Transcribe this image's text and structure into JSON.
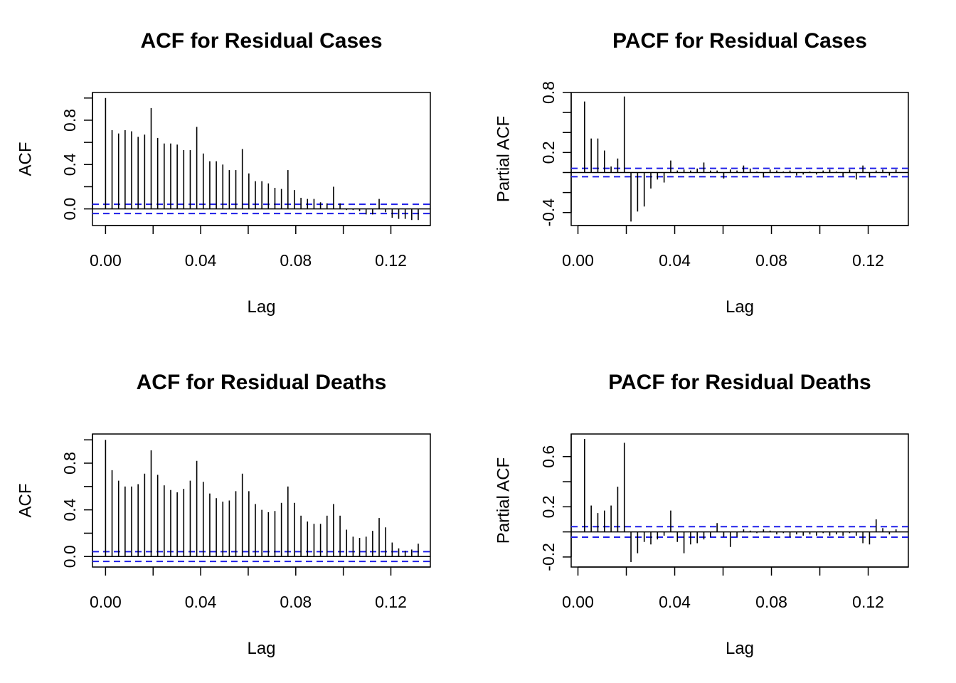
{
  "chart_data": [
    {
      "type": "bar",
      "title": "ACF for Residual Cases",
      "xlabel": "Lag",
      "ylabel": "ACF",
      "xlim": [
        -0.0055,
        0.1366
      ],
      "ylim": [
        -0.15,
        1.05
      ],
      "xticks": [
        0,
        0.04,
        0.08,
        0.12
      ],
      "xtick_labels": [
        "0.00",
        "0.04",
        "0.08",
        "0.12"
      ],
      "yticks": [
        0,
        0.2,
        0.4,
        0.6,
        0.8,
        1.0
      ],
      "ytick_labels": [
        "0.0",
        "",
        "0.4",
        "",
        "0.8",
        ""
      ],
      "ci": 0.042,
      "x": [
        0,
        0.00274,
        0.00548,
        0.00822,
        0.01096,
        0.0137,
        0.01644,
        0.01918,
        0.02192,
        0.02466,
        0.0274,
        0.03014,
        0.03288,
        0.03562,
        0.03836,
        0.0411,
        0.04384,
        0.04658,
        0.04932,
        0.05205,
        0.05479,
        0.05753,
        0.06027,
        0.06301,
        0.06575,
        0.06849,
        0.07123,
        0.07397,
        0.07671,
        0.07945,
        0.08219,
        0.08493,
        0.08767,
        0.09041,
        0.09315,
        0.09589,
        0.09863,
        0.10137,
        0.10411,
        0.10685,
        0.10959,
        0.11233,
        0.11507,
        0.11781,
        0.12055,
        0.12329,
        0.12603,
        0.12877,
        0.13151
      ],
      "values": [
        1.0,
        0.71,
        0.68,
        0.71,
        0.7,
        0.65,
        0.67,
        0.91,
        0.64,
        0.59,
        0.59,
        0.58,
        0.53,
        0.53,
        0.74,
        0.5,
        0.43,
        0.43,
        0.4,
        0.35,
        0.35,
        0.54,
        0.32,
        0.25,
        0.25,
        0.23,
        0.19,
        0.18,
        0.35,
        0.17,
        0.1,
        0.09,
        0.09,
        0.06,
        0.05,
        0.2,
        0.05,
        -0.01,
        -0.01,
        -0.02,
        -0.05,
        -0.05,
        0.09,
        -0.03,
        -0.08,
        -0.09,
        -0.09,
        -0.1,
        -0.1
      ]
    },
    {
      "type": "bar",
      "title": "PACF for Residual Cases",
      "xlabel": "Lag",
      "ylabel": "Partial ACF",
      "xlim": [
        -0.0028,
        0.1366
      ],
      "ylim": [
        -0.53,
        0.8
      ],
      "xticks": [
        0,
        0.04,
        0.08,
        0.12
      ],
      "xtick_labels": [
        "0.00",
        "0.04",
        "0.08",
        "0.12"
      ],
      "yticks": [
        -0.4,
        -0.2,
        0,
        0.2,
        0.4,
        0.6,
        0.8
      ],
      "ytick_labels": [
        "-0.4",
        "",
        "0.2",
        "",
        "0.8"
      ],
      "ytick_values": [
        -0.4,
        -0.2,
        0.2,
        0.5,
        0.8
      ],
      "ci": 0.042,
      "x": [
        0.00274,
        0.00548,
        0.00822,
        0.01096,
        0.0137,
        0.01644,
        0.01918,
        0.02192,
        0.02466,
        0.0274,
        0.03014,
        0.03288,
        0.03562,
        0.03836,
        0.0411,
        0.04384,
        0.04658,
        0.04932,
        0.05205,
        0.05479,
        0.05753,
        0.06027,
        0.06301,
        0.06575,
        0.06849,
        0.07123,
        0.07397,
        0.07671,
        0.07945,
        0.08219,
        0.08493,
        0.08767,
        0.09041,
        0.09315,
        0.09589,
        0.09863,
        0.10137,
        0.10411,
        0.10685,
        0.10959,
        0.11233,
        0.11507,
        0.11781,
        0.12055,
        0.12329,
        0.12603,
        0.12877,
        0.13151
      ],
      "values": [
        0.71,
        0.34,
        0.34,
        0.22,
        0.06,
        0.14,
        0.76,
        -0.49,
        -0.39,
        -0.34,
        -0.16,
        -0.07,
        -0.1,
        0.12,
        0.02,
        0.03,
        0.02,
        0.04,
        0.1,
        0.02,
        0.02,
        -0.06,
        0.03,
        0.02,
        0.07,
        0.04,
        0.01,
        -0.05,
        0.03,
        0.02,
        0.01,
        0.02,
        -0.03,
        -0.02,
        0.01,
        -0.02,
        0.02,
        0.03,
        0.01,
        -0.04,
        0.03,
        -0.07,
        0.07,
        -0.05,
        0.02,
        0.03,
        -0.03,
        0.03
      ]
    },
    {
      "type": "bar",
      "title": "ACF for Residual Deaths",
      "xlabel": "Lag",
      "ylabel": "ACF",
      "xlim": [
        -0.0055,
        0.1366
      ],
      "ylim": [
        -0.09,
        1.05
      ],
      "xticks": [
        0,
        0.04,
        0.08,
        0.12
      ],
      "xtick_labels": [
        "0.00",
        "0.04",
        "0.08",
        "0.12"
      ],
      "yticks": [
        0,
        0.2,
        0.4,
        0.6,
        0.8,
        1.0
      ],
      "ytick_labels": [
        "0.0",
        "",
        "0.4",
        "",
        "0.8",
        ""
      ],
      "ci": 0.042,
      "x": [
        0,
        0.00274,
        0.00548,
        0.00822,
        0.01096,
        0.0137,
        0.01644,
        0.01918,
        0.02192,
        0.02466,
        0.0274,
        0.03014,
        0.03288,
        0.03562,
        0.03836,
        0.0411,
        0.04384,
        0.04658,
        0.04932,
        0.05205,
        0.05479,
        0.05753,
        0.06027,
        0.06301,
        0.06575,
        0.06849,
        0.07123,
        0.07397,
        0.07671,
        0.07945,
        0.08219,
        0.08493,
        0.08767,
        0.09041,
        0.09315,
        0.09589,
        0.09863,
        0.10137,
        0.10411,
        0.10685,
        0.10959,
        0.11233,
        0.11507,
        0.11781,
        0.12055,
        0.12329,
        0.12603,
        0.12877,
        0.13151
      ],
      "values": [
        1.0,
        0.74,
        0.65,
        0.6,
        0.6,
        0.62,
        0.71,
        0.91,
        0.7,
        0.61,
        0.57,
        0.55,
        0.58,
        0.65,
        0.82,
        0.64,
        0.54,
        0.5,
        0.47,
        0.48,
        0.56,
        0.71,
        0.56,
        0.45,
        0.4,
        0.38,
        0.39,
        0.46,
        0.6,
        0.46,
        0.35,
        0.3,
        0.28,
        0.28,
        0.35,
        0.45,
        0.35,
        0.23,
        0.17,
        0.16,
        0.17,
        0.22,
        0.33,
        0.25,
        0.12,
        0.07,
        0.05,
        0.06,
        0.11
      ]
    },
    {
      "type": "bar",
      "title": "PACF for Residual Deaths",
      "xlabel": "Lag",
      "ylabel": "Partial ACF",
      "xlim": [
        -0.0028,
        0.1366
      ],
      "ylim": [
        -0.28,
        0.78
      ],
      "xticks": [
        0,
        0.04,
        0.08,
        0.12
      ],
      "xtick_labels": [
        "0.00",
        "0.04",
        "0.08",
        "0.12"
      ],
      "yticks": [
        -0.2,
        0,
        0.2,
        0.4,
        0.6
      ],
      "ytick_labels": [
        "-0.2",
        "",
        "0.2",
        "",
        "0.6"
      ],
      "ci": 0.042,
      "x": [
        0.00274,
        0.00548,
        0.00822,
        0.01096,
        0.0137,
        0.01644,
        0.01918,
        0.02192,
        0.02466,
        0.0274,
        0.03014,
        0.03288,
        0.03562,
        0.03836,
        0.0411,
        0.04384,
        0.04658,
        0.04932,
        0.05205,
        0.05479,
        0.05753,
        0.06027,
        0.06301,
        0.06575,
        0.06849,
        0.07123,
        0.07397,
        0.07671,
        0.07945,
        0.08219,
        0.08493,
        0.08767,
        0.09041,
        0.09315,
        0.09589,
        0.09863,
        0.10137,
        0.10411,
        0.10685,
        0.10959,
        0.11233,
        0.11507,
        0.11781,
        0.12055,
        0.12329,
        0.12603,
        0.12877,
        0.13151
      ],
      "values": [
        0.74,
        0.21,
        0.15,
        0.17,
        0.21,
        0.36,
        0.71,
        -0.24,
        -0.17,
        -0.08,
        -0.1,
        -0.06,
        -0.03,
        0.17,
        -0.08,
        -0.17,
        -0.1,
        -0.09,
        -0.06,
        -0.04,
        0.07,
        -0.04,
        -0.12,
        -0.04,
        0.02,
        0.01,
        -0.01,
        0.02,
        0.01,
        -0.02,
        -0.01,
        -0.04,
        -0.02,
        -0.03,
        -0.02,
        -0.03,
        -0.01,
        -0.03,
        -0.02,
        -0.03,
        -0.01,
        -0.03,
        -0.09,
        -0.1,
        0.1,
        0.03,
        -0.02,
        0.02
      ]
    }
  ]
}
